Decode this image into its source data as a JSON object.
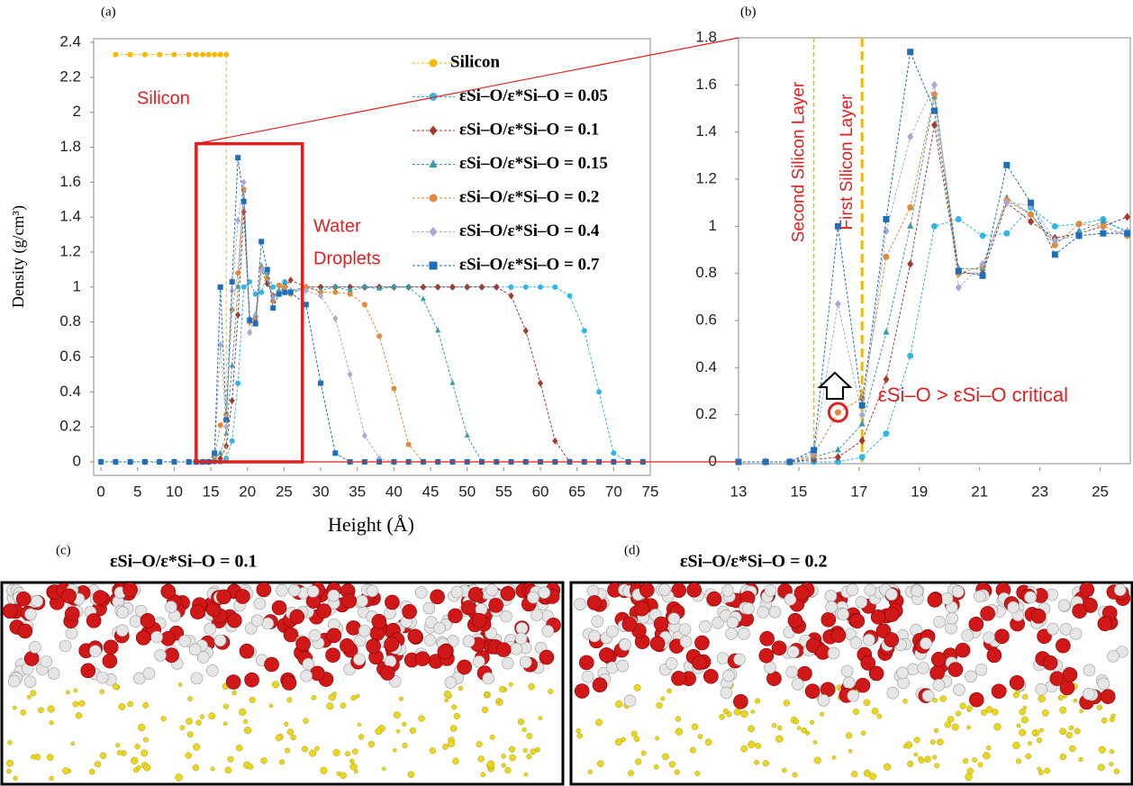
{
  "chart_data": [
    {
      "type": "line",
      "panel_label": "(a)",
      "x_label": "Height (Å)",
      "y_label": "Density (g/cm³)",
      "x": [
        0,
        2,
        4,
        6,
        8,
        10,
        12,
        13,
        13.9,
        14.7,
        15.5,
        16.3,
        17.1,
        17.9,
        18.7,
        19.5,
        20.3,
        21.1,
        21.9,
        22.7,
        23.5,
        24.3,
        25.1,
        25.9,
        28,
        30,
        32,
        34,
        36,
        38,
        40,
        42,
        44,
        46,
        48,
        50,
        52,
        54,
        56,
        58,
        60,
        62,
        64,
        66,
        68,
        70,
        72,
        74
      ],
      "series": [
        {
          "name": "Silicon",
          "color": "#f5b800",
          "marker": "circle",
          "values": [
            null,
            2.33,
            2.33,
            2.33,
            2.33,
            2.33,
            2.33,
            2.33,
            2.33,
            2.33,
            2.33,
            2.33,
            2.33,
            null,
            null,
            null,
            null,
            null,
            null,
            null,
            null,
            null,
            null,
            null,
            null,
            null,
            null,
            null,
            null,
            null,
            null,
            null,
            null,
            null,
            null,
            null,
            null,
            null,
            null,
            null,
            null,
            null,
            null,
            null,
            null,
            null,
            null,
            null
          ]
        },
        {
          "name": "εSi–O/ε*Si–O = 0.05",
          "color": "#33b5e5",
          "marker": "circle",
          "values": [
            0,
            0,
            0,
            0,
            0,
            0,
            0,
            0,
            0,
            0,
            0,
            0,
            0.02,
            0.12,
            0.45,
            1.0,
            1.03,
            0.96,
            0.97,
            1.08,
            1.0,
            1.01,
            1.03,
            0.97,
            1.0,
            1.0,
            1.0,
            1.0,
            1.0,
            1.0,
            1.0,
            1.0,
            1.0,
            1.0,
            1.0,
            1.0,
            1.0,
            1.0,
            1.0,
            1.0,
            1.0,
            1.0,
            0.95,
            0.75,
            0.4,
            0.05,
            0,
            0
          ]
        },
        {
          "name": "εSi–O/ε*Si–O = 0.1",
          "color": "#a33a2c",
          "marker": "diamond",
          "values": [
            0,
            0,
            0,
            0,
            0,
            0,
            0,
            0,
            0,
            0,
            0.01,
            0.02,
            0.09,
            0.35,
            0.84,
            1.43,
            0.8,
            0.8,
            1.1,
            1.02,
            0.95,
            0.97,
            1.0,
            1.04,
            1.0,
            1.0,
            1.0,
            1.0,
            1.0,
            1.0,
            1.0,
            1.0,
            1.0,
            1.0,
            1.0,
            1.0,
            1.0,
            1.0,
            0.95,
            0.75,
            0.45,
            0.12,
            0,
            0,
            0,
            0,
            0,
            0
          ]
        },
        {
          "name": "εSi–O/ε*Si–O = 0.15",
          "color": "#3a9aa8",
          "marker": "triangle",
          "values": [
            0,
            0,
            0,
            0,
            0,
            0,
            0,
            0,
            0,
            0,
            0.02,
            0.05,
            0.16,
            0.55,
            1.0,
            1.55,
            0.82,
            0.82,
            1.12,
            1.05,
            0.93,
            0.98,
            1.02,
            0.98,
            1.0,
            0.98,
            1.0,
            0.98,
            1.0,
            0.99,
            1.0,
            1.0,
            0.93,
            0.75,
            0.45,
            0.15,
            0,
            0,
            0,
            0,
            0,
            0,
            0,
            0,
            0,
            0,
            0,
            0
          ]
        },
        {
          "name": "εSi–O/ε*Si–O = 0.2",
          "color": "#e08a3c",
          "marker": "circle",
          "values": [
            0,
            0,
            0,
            0,
            0,
            0,
            0,
            0,
            0,
            0,
            0.03,
            0.21,
            0.27,
            0.87,
            1.08,
            1.56,
            0.8,
            0.83,
            1.11,
            1.05,
            0.92,
            1.01,
            1.0,
            0.96,
            1.0,
            0.97,
            0.97,
            0.96,
            0.9,
            0.72,
            0.42,
            0.1,
            0,
            0,
            0,
            0,
            0,
            0,
            0,
            0,
            0,
            0,
            0,
            0,
            0,
            0,
            0,
            0
          ]
        },
        {
          "name": "εSi–O/ε*Si–O = 0.4",
          "color": "#a9a9d8",
          "marker": "diamond",
          "values": [
            0,
            0,
            0,
            0,
            0,
            0,
            0,
            0,
            0,
            0,
            0.04,
            0.67,
            0.2,
            0.98,
            1.38,
            1.6,
            0.74,
            0.84,
            1.1,
            1.09,
            0.94,
            0.96,
            0.97,
            0.98,
            0.98,
            0.95,
            0.82,
            0.5,
            0.15,
            0.02,
            0,
            0,
            0,
            0,
            0,
            0,
            0,
            0,
            0,
            0,
            0,
            0,
            0,
            0,
            0,
            0,
            0,
            0
          ]
        },
        {
          "name": "εSi–O/ε*Si–O = 0.7",
          "color": "#1f6fb8",
          "marker": "square",
          "values": [
            0,
            0,
            0,
            0,
            0,
            0,
            0,
            0,
            0,
            0,
            0.05,
            1.0,
            0.24,
            1.03,
            1.74,
            1.49,
            0.81,
            0.79,
            1.26,
            1.1,
            0.88,
            0.96,
            0.97,
            0.97,
            0.9,
            0.45,
            0.05,
            0,
            0,
            0,
            0,
            0,
            0,
            0,
            0,
            0,
            0,
            0,
            0,
            0,
            0,
            0,
            0,
            0,
            0,
            0,
            0,
            0
          ]
        }
      ],
      "xlim": [
        -1,
        75
      ],
      "xticks": [
        0,
        5,
        10,
        15,
        20,
        25,
        30,
        35,
        40,
        45,
        50,
        55,
        60,
        65,
        70,
        75
      ],
      "ylim": [
        0,
        2.4
      ],
      "yticks": [
        0,
        0.2,
        0.4,
        0.6,
        0.8,
        1,
        1.2,
        1.4,
        1.6,
        1.8,
        2,
        2.2,
        2.4
      ],
      "legend": "top-right",
      "annotations": [
        "Silicon",
        "Water",
        "Droplets"
      ]
    },
    {
      "type": "line",
      "panel_label": "(b)",
      "x": [
        13,
        13.9,
        14.7,
        15.5,
        16.3,
        17.1,
        17.9,
        18.7,
        19.5,
        20.3,
        21.1,
        21.9,
        22.7,
        23.5,
        24.3,
        25.1,
        25.9
      ],
      "series": [
        {
          "color": "#33b5e5",
          "marker": "circle",
          "values": [
            0,
            0,
            0,
            0,
            0,
            0.02,
            0.12,
            0.45,
            1.0,
            1.03,
            0.96,
            0.97,
            1.08,
            1.0,
            1.01,
            1.03,
            0.97
          ]
        },
        {
          "color": "#a33a2c",
          "marker": "diamond",
          "values": [
            0,
            0,
            0,
            0.01,
            0.02,
            0.09,
            0.35,
            0.84,
            1.43,
            0.8,
            0.8,
            1.1,
            1.02,
            0.95,
            0.97,
            1.0,
            1.04
          ]
        },
        {
          "color": "#3a9aa8",
          "marker": "triangle",
          "values": [
            0,
            0,
            0,
            0.02,
            0.05,
            0.16,
            0.55,
            1.0,
            1.55,
            0.82,
            0.82,
            1.12,
            1.05,
            0.93,
            0.98,
            1.02,
            0.98
          ]
        },
        {
          "color": "#e08a3c",
          "marker": "circle",
          "values": [
            0,
            0,
            0,
            0.03,
            0.21,
            0.27,
            0.87,
            1.08,
            1.56,
            0.8,
            0.83,
            1.11,
            1.05,
            0.92,
            1.01,
            1.0,
            0.96
          ]
        },
        {
          "color": "#a9a9d8",
          "marker": "diamond",
          "values": [
            0,
            0,
            0,
            0.04,
            0.67,
            0.2,
            0.98,
            1.38,
            1.6,
            0.74,
            0.84,
            1.1,
            1.09,
            0.94,
            0.96,
            0.97,
            0.98
          ]
        },
        {
          "color": "#1f6fb8",
          "marker": "square",
          "values": [
            0,
            0,
            0,
            0.05,
            1.0,
            0.24,
            1.03,
            1.74,
            1.49,
            0.81,
            0.79,
            1.26,
            1.1,
            0.88,
            0.96,
            0.97,
            0.97
          ]
        }
      ],
      "xlim": [
        13,
        26
      ],
      "xticks": [
        13,
        15,
        17,
        19,
        21,
        23,
        25
      ],
      "ylim": [
        0,
        1.8
      ],
      "yticks": [
        0,
        0.2,
        0.4,
        0.6,
        0.8,
        1,
        1.2,
        1.4,
        1.6,
        1.8
      ],
      "vlines": [
        {
          "x": 15.5,
          "label": "Second Silicon Layer"
        },
        {
          "x": 17.1,
          "label": "First Silicon Layer"
        }
      ],
      "annotations": [
        "εSi–O > εSi–O critical"
      ]
    }
  ],
  "figure": {
    "panels": [
      {
        "label": "(c)",
        "title": "εSi–O/ε*Si–O = 0.1"
      },
      {
        "label": "(d)",
        "title": "εSi–O/ε*Si–O = 0.2"
      }
    ]
  }
}
